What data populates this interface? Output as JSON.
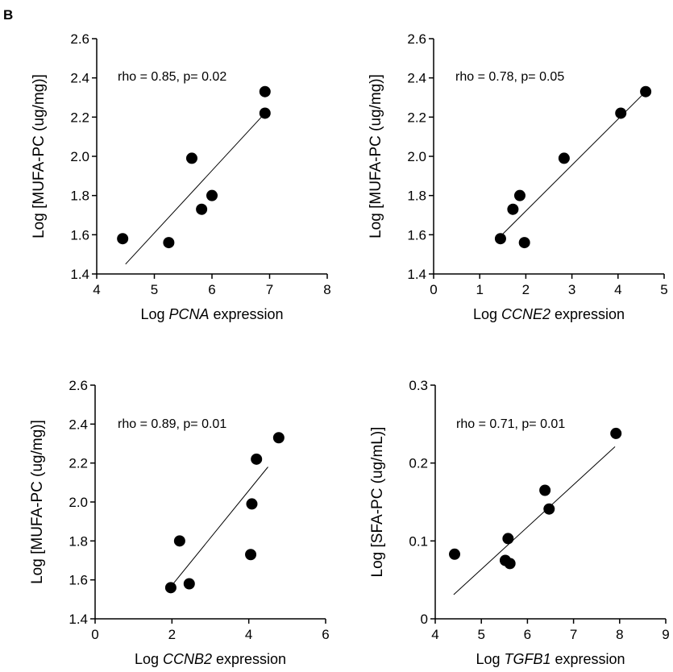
{
  "panel_label": "B",
  "chart_data": [
    {
      "type": "scatter",
      "annotation": "rho = 0.85, p= 0.02",
      "ylabel": "Log [MUFA-PC (ug/mg)]",
      "xlabel_pre": "Log ",
      "xlabel_gene": "PCNA",
      "xlabel_post": " expression",
      "xlim": [
        4,
        8
      ],
      "ylim": [
        1.4,
        2.6
      ],
      "xticks": [
        4,
        5,
        6,
        7,
        8
      ],
      "yticks": [
        1.4,
        1.6,
        1.8,
        2.0,
        2.2,
        2.4,
        2.6
      ],
      "ytick_decimals": 1,
      "points": [
        {
          "x": 4.45,
          "y": 1.58
        },
        {
          "x": 5.25,
          "y": 1.56
        },
        {
          "x": 5.65,
          "y": 1.99
        },
        {
          "x": 5.82,
          "y": 1.73
        },
        {
          "x": 6.0,
          "y": 1.8
        },
        {
          "x": 6.92,
          "y": 2.22
        },
        {
          "x": 6.92,
          "y": 2.33
        }
      ],
      "fit_line": [
        {
          "x": 4.5,
          "y": 1.45
        },
        {
          "x": 6.92,
          "y": 2.22
        }
      ]
    },
    {
      "type": "scatter",
      "annotation": "rho = 0.78, p= 0.05",
      "ylabel": "Log [MUFA-PC (ug/mg)]",
      "xlabel_pre": "Log ",
      "xlabel_gene": "CCNE2",
      "xlabel_post": " expression",
      "xlim": [
        0,
        5
      ],
      "ylim": [
        1.4,
        2.6
      ],
      "xticks": [
        0,
        1,
        2,
        3,
        4,
        5
      ],
      "yticks": [
        1.4,
        1.6,
        1.8,
        2.0,
        2.2,
        2.4,
        2.6
      ],
      "ytick_decimals": 1,
      "points": [
        {
          "x": 1.45,
          "y": 1.58
        },
        {
          "x": 1.72,
          "y": 1.73
        },
        {
          "x": 1.87,
          "y": 1.8
        },
        {
          "x": 1.97,
          "y": 1.56
        },
        {
          "x": 2.83,
          "y": 1.99
        },
        {
          "x": 4.06,
          "y": 2.22
        },
        {
          "x": 4.6,
          "y": 2.33
        }
      ],
      "fit_line": [
        {
          "x": 1.42,
          "y": 1.585
        },
        {
          "x": 4.6,
          "y": 2.33
        }
      ]
    },
    {
      "type": "scatter",
      "annotation": "rho = 0.89, p= 0.01",
      "ylabel": "Log [MUFA-PC (ug/mg)]",
      "xlabel_pre": "Log ",
      "xlabel_gene": "CCNB2",
      "xlabel_post": " expression",
      "xlim": [
        0,
        6
      ],
      "ylim": [
        1.4,
        2.6
      ],
      "xticks": [
        0,
        2,
        4,
        6
      ],
      "yticks": [
        1.4,
        1.6,
        1.8,
        2.0,
        2.2,
        2.4,
        2.6
      ],
      "ytick_decimals": 1,
      "points": [
        {
          "x": 1.97,
          "y": 1.56
        },
        {
          "x": 2.2,
          "y": 1.8
        },
        {
          "x": 2.45,
          "y": 1.58
        },
        {
          "x": 4.05,
          "y": 1.73
        },
        {
          "x": 4.08,
          "y": 1.99
        },
        {
          "x": 4.2,
          "y": 2.22
        },
        {
          "x": 4.78,
          "y": 2.33
        }
      ],
      "fit_line": [
        {
          "x": 1.95,
          "y": 1.56
        },
        {
          "x": 4.5,
          "y": 2.18
        }
      ]
    },
    {
      "type": "scatter",
      "annotation": "rho = 0.71, p= 0.01",
      "ylabel": "Log [SFA-PC (ug/mL)]",
      "xlabel_pre": "Log ",
      "xlabel_gene": "TGFB1",
      "xlabel_post": " expression",
      "xlim": [
        4,
        9
      ],
      "ylim": [
        0,
        0.3
      ],
      "xticks": [
        4,
        5,
        6,
        7,
        8,
        9
      ],
      "yticks": [
        0,
        0.1,
        0.2,
        0.3
      ],
      "ytick_decimals": 1,
      "points": [
        {
          "x": 4.42,
          "y": 0.083
        },
        {
          "x": 5.52,
          "y": 0.075
        },
        {
          "x": 5.58,
          "y": 0.103
        },
        {
          "x": 5.62,
          "y": 0.071
        },
        {
          "x": 6.38,
          "y": 0.165
        },
        {
          "x": 6.47,
          "y": 0.141
        },
        {
          "x": 7.92,
          "y": 0.238
        }
      ],
      "fit_line": [
        {
          "x": 4.4,
          "y": 0.031
        },
        {
          "x": 7.9,
          "y": 0.221
        }
      ]
    }
  ]
}
